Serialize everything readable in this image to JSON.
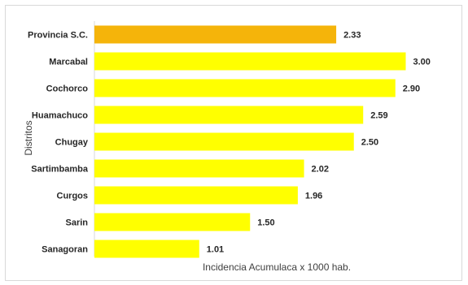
{
  "chart_data": {
    "type": "bar",
    "orientation": "horizontal",
    "categories": [
      "Provincia S.C.",
      "Marcabal",
      "Cochorco",
      "Huamachuco",
      "Chugay",
      "Sartimbamba",
      "Curgos",
      "Sarin",
      "Sanagoran"
    ],
    "values": [
      2.33,
      3.0,
      2.9,
      2.59,
      2.5,
      2.02,
      1.96,
      1.5,
      1.01
    ],
    "value_labels": [
      "2.33",
      "3.00",
      "2.90",
      "2.59",
      "2.50",
      "2.02",
      "1.96",
      "1.50",
      "1.01"
    ],
    "bar_colors": [
      "#f5b40a",
      "#ffff00",
      "#ffff00",
      "#ffff00",
      "#ffff00",
      "#ffff00",
      "#ffff00",
      "#ffff00",
      "#ffff00"
    ],
    "xlabel": "Incidencia Acumulaca x 1000 hab.",
    "ylabel": "Distritos",
    "xlim": [
      0,
      3.2
    ],
    "grid": false,
    "legend": "none"
  }
}
